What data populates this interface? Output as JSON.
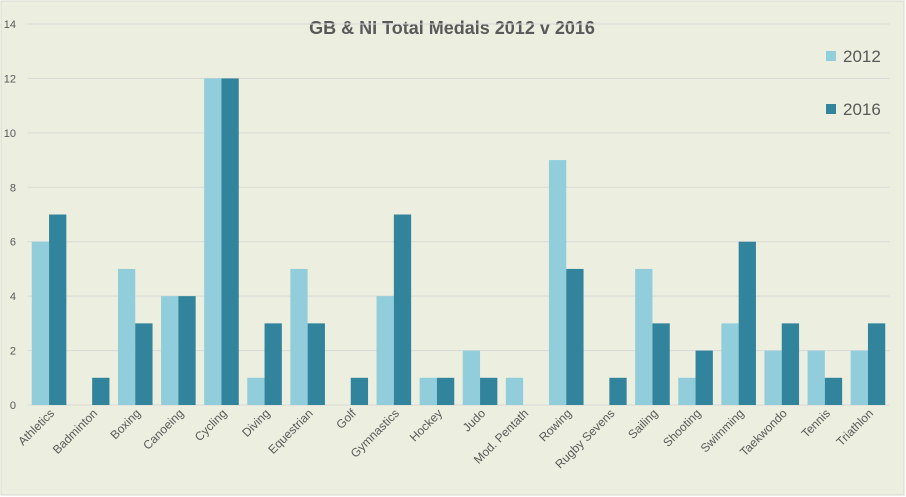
{
  "chart_data": {
    "type": "bar",
    "title": "GB & NI Total Medals 2012 v 2016",
    "xlabel": "",
    "ylabel": "",
    "ylim": [
      0,
      14
    ],
    "yticks": [
      0,
      2,
      4,
      6,
      8,
      10,
      12,
      14
    ],
    "grid": true,
    "legend_position": "top-right",
    "categories": [
      "Athletics",
      "Badminton",
      "Boxing",
      "Canoeing",
      "Cycling",
      "Diving",
      "Equestrian",
      "Golf",
      "Gymnastics",
      "Hockey",
      "Judo",
      "Mod. Pentath",
      "Rowing",
      "Rugby Sevens",
      "Sailing",
      "Shooting",
      "Swimming",
      "Taekwondo",
      "Tennis",
      "Triathlon"
    ],
    "series": [
      {
        "name": "2012",
        "color": "#92cddc",
        "values": [
          6,
          0,
          5,
          4,
          12,
          1,
          5,
          0,
          4,
          1,
          2,
          1,
          9,
          0,
          5,
          1,
          3,
          2,
          2,
          2
        ]
      },
      {
        "name": "2016",
        "color": "#31849b",
        "values": [
          7,
          1,
          3,
          4,
          12,
          3,
          3,
          1,
          7,
          1,
          1,
          0,
          5,
          1,
          3,
          2,
          6,
          3,
          1,
          3
        ]
      }
    ],
    "background": "#ecefdf"
  }
}
